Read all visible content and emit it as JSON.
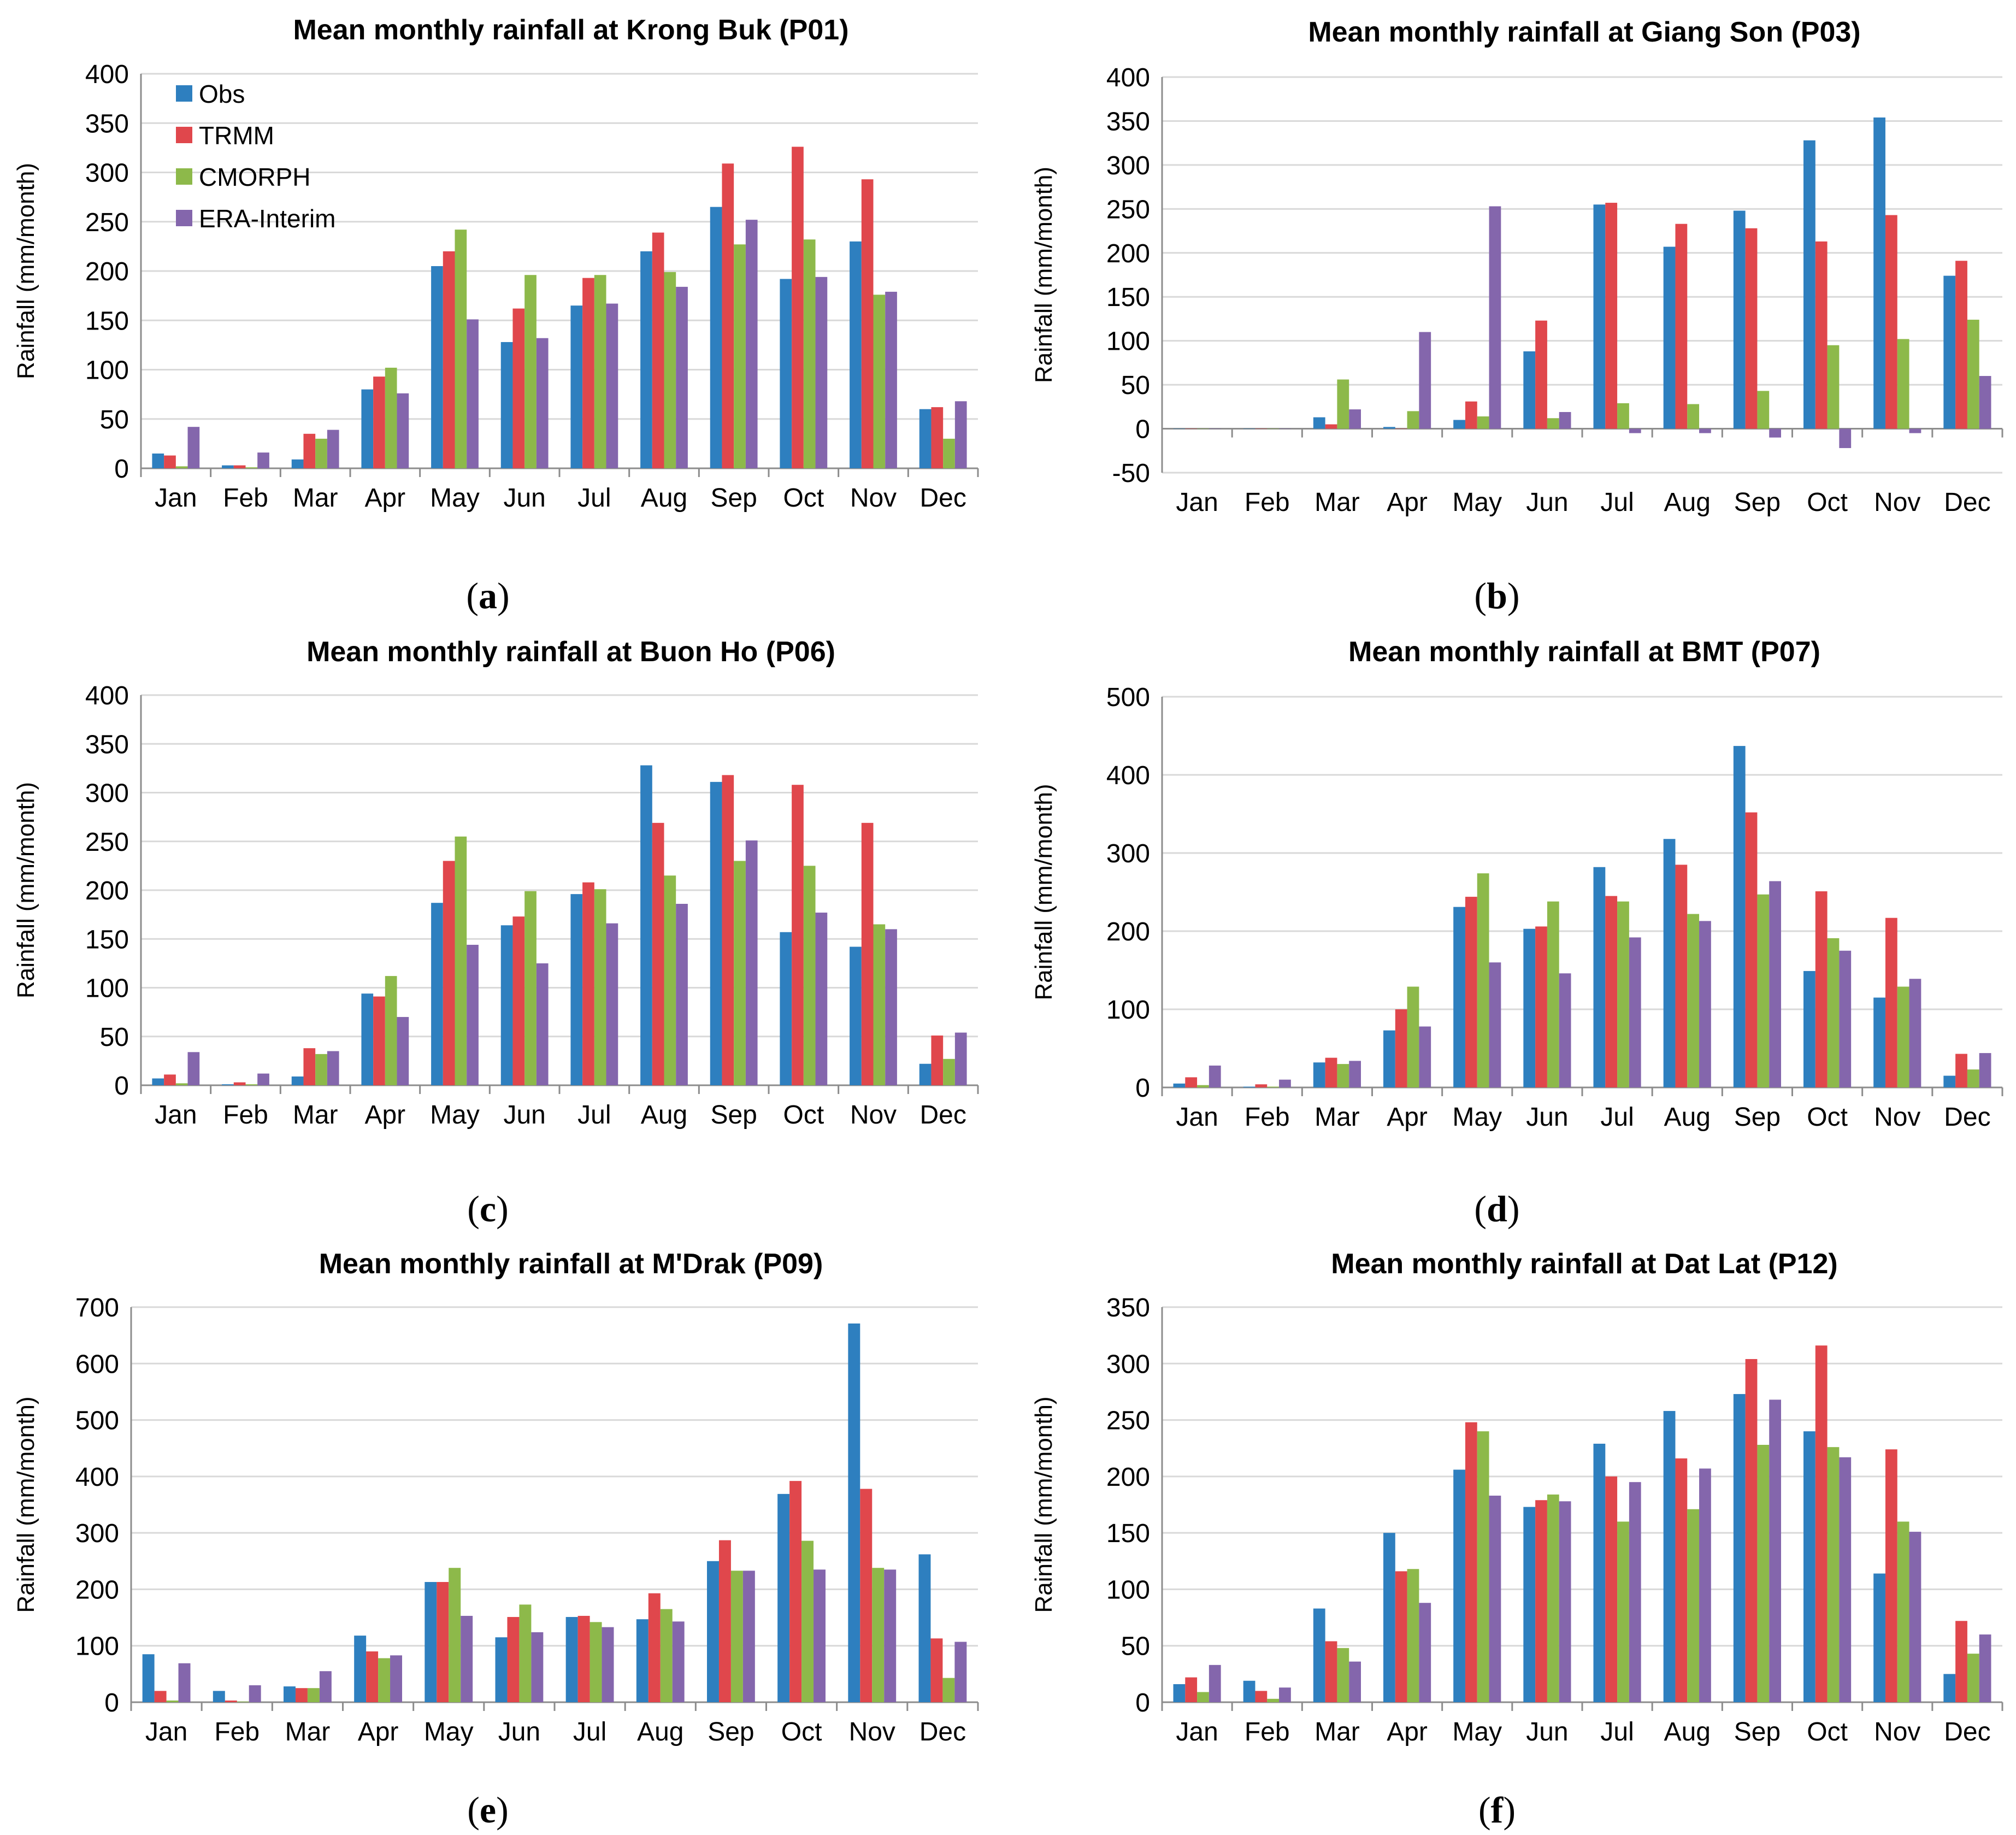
{
  "colors": {
    "Obs": "#2e7fbf",
    "TRMM": "#e0474c",
    "CMORPH": "#8db94a",
    "ERA-Interim": "#8466ac",
    "grid": "#d9d9d9",
    "axis": "#8c8c8c"
  },
  "months": [
    "Jan",
    "Feb",
    "Mar",
    "Apr",
    "May",
    "Jun",
    "Jul",
    "Aug",
    "Sep",
    "Oct",
    "Nov",
    "Dec"
  ],
  "chart_data": [
    {
      "type": "bar",
      "panel": "(a)",
      "caption_letter": "a",
      "title": "Mean monthly rainfall at Krong Buk (P01)",
      "ylabel": "Rainfall (mm/month)",
      "ylim": [
        0,
        400
      ],
      "yticks": [
        "0",
        "50",
        "100",
        "150",
        "200",
        "250",
        "300",
        "350",
        "400"
      ],
      "grid": true,
      "legend": "top-left",
      "categories": [
        "Jan",
        "Feb",
        "Mar",
        "Apr",
        "May",
        "Jun",
        "Jul",
        "Aug",
        "Sep",
        "Oct",
        "Nov",
        "Dec"
      ],
      "series": [
        {
          "name": "Obs",
          "values": [
            15,
            3,
            9,
            80,
            205,
            128,
            165,
            220,
            265,
            192,
            230,
            60
          ]
        },
        {
          "name": "TRMM",
          "values": [
            13,
            3,
            35,
            93,
            220,
            162,
            193,
            239,
            309,
            326,
            293,
            62
          ]
        },
        {
          "name": "CMORPH",
          "values": [
            2,
            1,
            30,
            102,
            242,
            196,
            196,
            199,
            227,
            232,
            176,
            30
          ]
        },
        {
          "name": "ERA-Interim",
          "values": [
            42,
            16,
            39,
            76,
            151,
            132,
            167,
            184,
            252,
            194,
            179,
            68
          ]
        }
      ]
    },
    {
      "type": "bar",
      "panel": "(b)",
      "caption_letter": "b",
      "title": "Mean monthly rainfall at Giang Son (P03)",
      "ylabel": "Rainfall (mm/month)",
      "ylim": [
        -50,
        400
      ],
      "yticks": [
        "-50",
        "0",
        "50",
        "100",
        "150",
        "200",
        "250",
        "300",
        "350",
        "400"
      ],
      "grid": true,
      "categories": [
        "Jan",
        "Feb",
        "Mar",
        "Apr",
        "May",
        "Jun",
        "Jul",
        "Aug",
        "Sep",
        "Oct",
        "Nov",
        "Dec"
      ],
      "series": [
        {
          "name": "Obs",
          "values": [
            0,
            0,
            13,
            2,
            10,
            88,
            255,
            207,
            248,
            328,
            354,
            174
          ]
        },
        {
          "name": "TRMM",
          "values": [
            0,
            0,
            5,
            0,
            31,
            123,
            257,
            233,
            228,
            213,
            243,
            191
          ]
        },
        {
          "name": "CMORPH",
          "values": [
            0,
            0,
            56,
            20,
            14,
            12,
            29,
            28,
            43,
            95,
            102,
            124
          ]
        },
        {
          "name": "ERA-Interim",
          "values": [
            0,
            0,
            22,
            110,
            253,
            19,
            -5,
            -5,
            -10,
            -22,
            -5,
            60
          ]
        }
      ]
    },
    {
      "type": "bar",
      "panel": "(c)",
      "caption_letter": "c",
      "title": "Mean monthly rainfall at Buon Ho (P06)",
      "ylabel": "Rainfall (mm/month)",
      "ylim": [
        0,
        400
      ],
      "yticks": [
        "0",
        "50",
        "100",
        "150",
        "200",
        "250",
        "300",
        "350",
        "400"
      ],
      "grid": true,
      "categories": [
        "Jan",
        "Feb",
        "Mar",
        "Apr",
        "May",
        "Jun",
        "Jul",
        "Aug",
        "Sep",
        "Oct",
        "Nov",
        "Dec"
      ],
      "series": [
        {
          "name": "Obs",
          "values": [
            7,
            1,
            9,
            94,
            187,
            164,
            196,
            328,
            311,
            157,
            142,
            22
          ]
        },
        {
          "name": "TRMM",
          "values": [
            11,
            3,
            38,
            91,
            230,
            173,
            208,
            269,
            318,
            308,
            269,
            51
          ]
        },
        {
          "name": "CMORPH",
          "values": [
            2,
            1,
            32,
            112,
            255,
            199,
            201,
            215,
            230,
            225,
            165,
            27
          ]
        },
        {
          "name": "ERA-Interim",
          "values": [
            34,
            12,
            35,
            70,
            144,
            125,
            166,
            186,
            251,
            177,
            160,
            54
          ]
        }
      ]
    },
    {
      "type": "bar",
      "panel": "(d)",
      "caption_letter": "d",
      "title": "Mean monthly rainfall at BMT (P07)",
      "ylabel": "Rainfall (mm/month)",
      "ylim": [
        0,
        500
      ],
      "yticks": [
        "0",
        "100",
        "200",
        "300",
        "400",
        "500"
      ],
      "grid": true,
      "categories": [
        "Jan",
        "Feb",
        "Mar",
        "Apr",
        "May",
        "Jun",
        "Jul",
        "Aug",
        "Sep",
        "Oct",
        "Nov",
        "Dec"
      ],
      "series": [
        {
          "name": "Obs",
          "values": [
            5,
            1,
            32,
            73,
            231,
            203,
            282,
            318,
            437,
            149,
            115,
            15
          ]
        },
        {
          "name": "TRMM",
          "values": [
            13,
            4,
            38,
            100,
            244,
            206,
            245,
            285,
            352,
            251,
            217,
            43
          ]
        },
        {
          "name": "CMORPH",
          "values": [
            3,
            1,
            30,
            129,
            274,
            238,
            238,
            222,
            247,
            191,
            129,
            23
          ]
        },
        {
          "name": "ERA-Interim",
          "values": [
            28,
            10,
            34,
            78,
            160,
            146,
            192,
            213,
            264,
            175,
            139,
            44
          ]
        }
      ]
    },
    {
      "type": "bar",
      "panel": "(e)",
      "caption_letter": "e",
      "title": "Mean monthly rainfall at M'Drak (P09)",
      "ylabel": "Rainfall (mm/month)",
      "ylim": [
        0,
        700
      ],
      "yticks": [
        "0",
        "100",
        "200",
        "300",
        "400",
        "500",
        "600",
        "700"
      ],
      "grid": true,
      "categories": [
        "Jan",
        "Feb",
        "Mar",
        "Apr",
        "May",
        "Jun",
        "Jul",
        "Aug",
        "Sep",
        "Oct",
        "Nov",
        "Dec"
      ],
      "series": [
        {
          "name": "Obs",
          "values": [
            85,
            20,
            28,
            118,
            213,
            115,
            151,
            147,
            250,
            369,
            671,
            262
          ]
        },
        {
          "name": "TRMM",
          "values": [
            20,
            3,
            25,
            90,
            213,
            151,
            153,
            193,
            287,
            392,
            378,
            113
          ]
        },
        {
          "name": "CMORPH",
          "values": [
            3,
            1,
            25,
            78,
            238,
            173,
            142,
            165,
            233,
            286,
            238,
            43
          ]
        },
        {
          "name": "ERA-Interim",
          "values": [
            69,
            30,
            55,
            83,
            153,
            124,
            133,
            143,
            233,
            235,
            235,
            107
          ]
        }
      ]
    },
    {
      "type": "bar",
      "panel": "(f)",
      "caption_letter": "f",
      "title": "Mean monthly rainfall at Dat Lat  (P12)",
      "ylabel": "Rainfall (mm/month)",
      "ylim": [
        0,
        350
      ],
      "yticks": [
        "0",
        "50",
        "100",
        "150",
        "200",
        "250",
        "300",
        "350"
      ],
      "grid": true,
      "categories": [
        "Jan",
        "Feb",
        "Mar",
        "Apr",
        "May",
        "Jun",
        "Jul",
        "Aug",
        "Sep",
        "Oct",
        "Nov",
        "Dec"
      ],
      "series": [
        {
          "name": "Obs",
          "values": [
            16,
            19,
            83,
            150,
            206,
            173,
            229,
            258,
            273,
            240,
            114,
            25
          ]
        },
        {
          "name": "TRMM",
          "values": [
            22,
            10,
            54,
            116,
            248,
            179,
            200,
            216,
            304,
            316,
            224,
            72
          ]
        },
        {
          "name": "CMORPH",
          "values": [
            9,
            3,
            48,
            118,
            240,
            184,
            160,
            171,
            228,
            226,
            160,
            43
          ]
        },
        {
          "name": "ERA-Interim",
          "values": [
            33,
            13,
            36,
            88,
            183,
            178,
            195,
            207,
            268,
            217,
            151,
            60
          ]
        }
      ]
    }
  ]
}
